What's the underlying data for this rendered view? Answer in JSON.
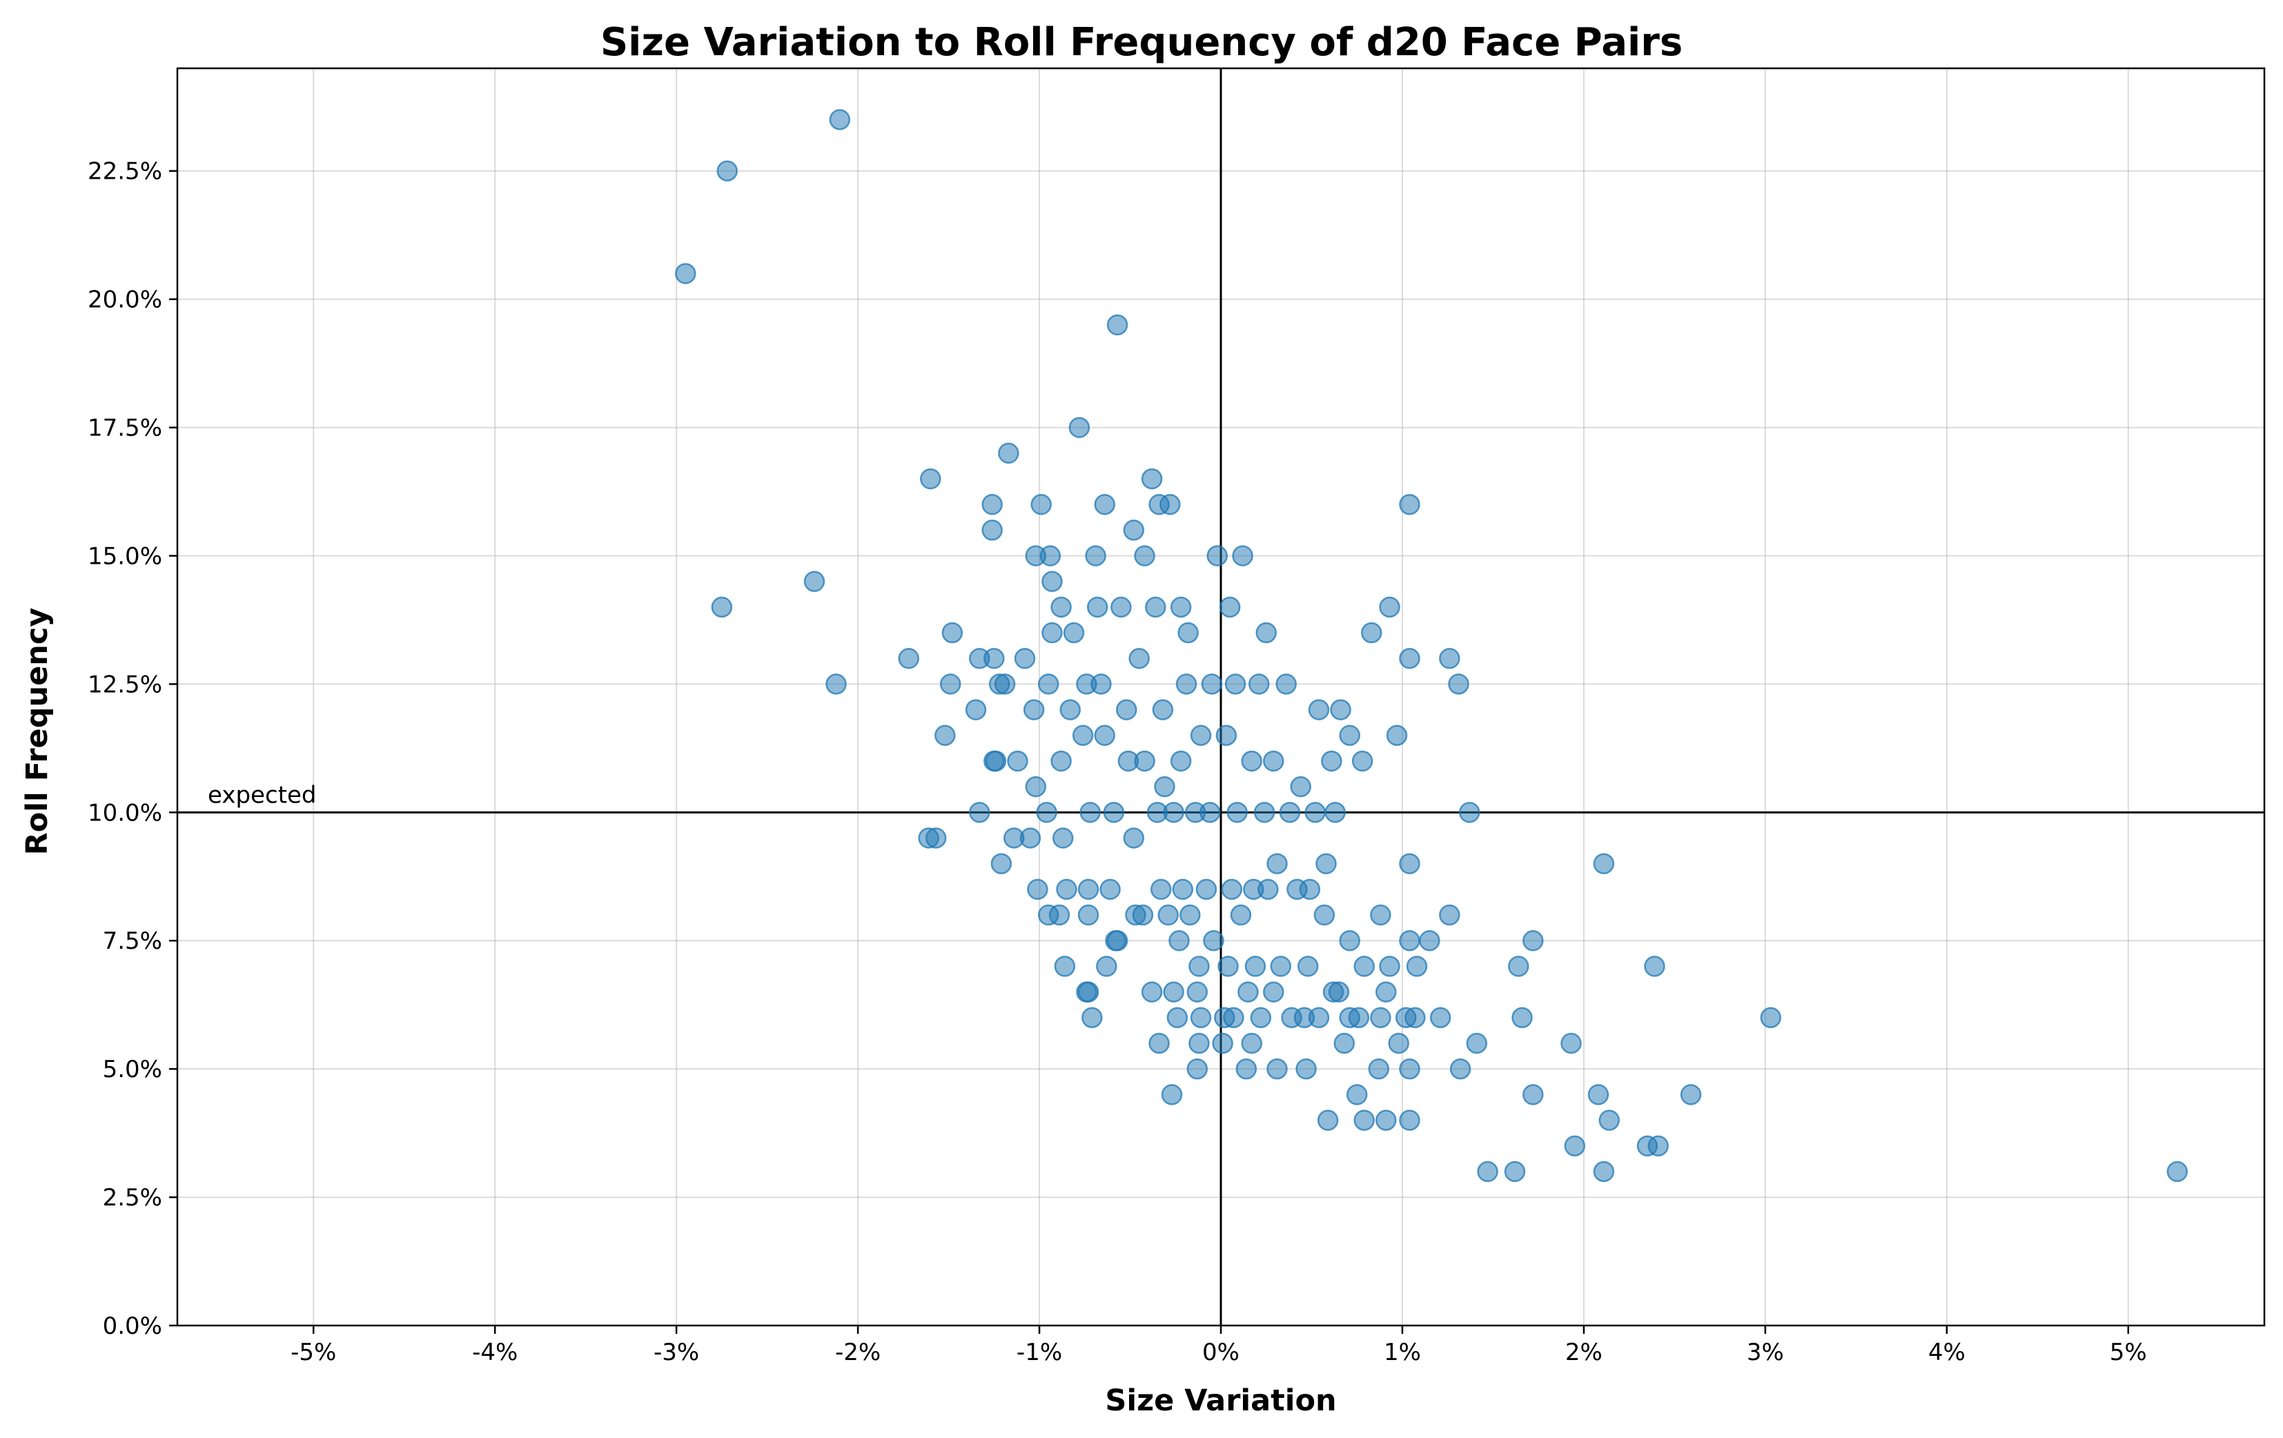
{
  "chart_data": {
    "type": "scatter",
    "title": "Size Variation to Roll Frequency of d20 Face Pairs",
    "xlabel": "Size Variation",
    "ylabel": "Roll Frequency",
    "xlim": [
      -0.0575,
      0.0575
    ],
    "ylim": [
      0,
      0.245
    ],
    "x_ticks": [
      -0.05,
      -0.04,
      -0.03,
      -0.02,
      -0.01,
      0,
      0.01,
      0.02,
      0.03,
      0.04,
      0.05
    ],
    "x_tick_labels": [
      "-5%",
      "-4%",
      "-3%",
      "-2%",
      "-1%",
      "0%",
      "1%",
      "2%",
      "3%",
      "4%",
      "5%"
    ],
    "y_ticks": [
      0,
      0.025,
      0.05,
      0.075,
      0.1,
      0.125,
      0.15,
      0.175,
      0.2,
      0.225
    ],
    "y_tick_labels": [
      "0.0%",
      "2.5%",
      "5.0%",
      "7.5%",
      "10.0%",
      "12.5%",
      "15.0%",
      "17.5%",
      "20.0%",
      "22.5%"
    ],
    "grid": true,
    "reference_lines": {
      "x": 0,
      "y": 0.1
    },
    "annotation": {
      "text": "expected",
      "x_at": "left",
      "y": 0.1
    },
    "color": "#1f77b4",
    "series": [
      {
        "x": [
          -0.021,
          -0.0272,
          -0.0295,
          -0.0057,
          -0.0078,
          -0.0117,
          -0.016,
          -0.0126,
          -0.0126,
          -0.0099,
          -0.0094,
          -0.0064,
          -0.0038,
          -0.0028,
          -0.0034,
          -0.0048,
          -0.0022,
          -0.0102,
          -0.0093,
          -0.0088,
          -0.0069,
          -0.0042,
          -0.0002,
          0.0012,
          0.0104,
          -0.0275,
          -0.0224,
          -0.0212,
          -0.0172,
          -0.0148,
          -0.0133,
          -0.0125,
          -0.0122,
          -0.0108,
          -0.0093,
          -0.0081,
          -0.0068,
          -0.0055,
          -0.0036,
          -0.0018,
          0.0005,
          0.0025,
          0.0083,
          0.0126,
          0.0104,
          0.0131,
          0.0093,
          -0.0152,
          -0.0149,
          -0.0135,
          -0.0124,
          -0.0119,
          -0.0103,
          -0.0095,
          -0.0083,
          -0.0074,
          -0.0066,
          -0.0052,
          -0.0045,
          -0.0032,
          -0.0019,
          -0.0005,
          0.0008,
          0.0021,
          0.0036,
          0.0054,
          0.0066,
          0.0097,
          -0.0157,
          -0.0125,
          -0.0112,
          -0.0102,
          -0.0088,
          -0.0076,
          -0.0064,
          -0.0051,
          -0.0042,
          -0.0031,
          -0.0022,
          -0.0011,
          0.0003,
          0.0017,
          0.0029,
          0.0044,
          0.0061,
          0.0071,
          0.0078,
          -0.0133,
          -0.0105,
          -0.0096,
          -0.0087,
          -0.0072,
          -0.0059,
          -0.0048,
          -0.0035,
          -0.0026,
          -0.0014,
          -0.0006,
          0.0009,
          0.0024,
          0.0038,
          0.0052,
          0.0063,
          0.0137,
          -0.0161,
          -0.0114,
          -0.0101,
          -0.0089,
          -0.0073,
          -0.0061,
          -0.0047,
          -0.0033,
          -0.0021,
          -0.0008,
          0.0006,
          0.0018,
          0.0031,
          0.0049,
          0.0058,
          0.0104,
          0.0211,
          -0.0121,
          -0.0095,
          -0.0085,
          -0.0073,
          -0.0058,
          -0.0043,
          -0.0029,
          -0.0017,
          -0.0004,
          0.0011,
          0.0026,
          0.0042,
          0.0057,
          0.0071,
          0.0088,
          0.0104,
          0.0115,
          0.0126,
          -0.0086,
          -0.0073,
          -0.0057,
          -0.0038,
          -0.0023,
          -0.0012,
          0.0004,
          0.0019,
          0.0033,
          0.0048,
          0.0065,
          0.0079,
          0.0093,
          0.0108,
          0.0172,
          -0.0063,
          -0.0024,
          -0.0011,
          0.0007,
          0.0022,
          0.0039,
          0.0054,
          0.0071,
          0.0088,
          0.0102,
          0.0121,
          0.0164,
          0.0239,
          -0.0071,
          -0.0026,
          -0.0013,
          0.0002,
          0.0015,
          0.0029,
          0.0046,
          0.0062,
          0.0076,
          0.0091,
          0.0107,
          0.0166,
          0.0303,
          -0.0074,
          -0.0034,
          -0.0012,
          0.0001,
          0.0017,
          0.0068,
          0.0098,
          0.0141,
          0.0193,
          -0.0027,
          -0.0013,
          0.0014,
          0.0031,
          0.0047,
          0.0075,
          0.0087,
          0.0104,
          0.0132,
          0.0172,
          0.0208,
          0.0259,
          0.0059,
          0.0079,
          0.0091,
          0.0104,
          0.0214,
          0.0195,
          0.0235,
          0.0241,
          0.0147,
          0.0162,
          0.0211,
          0.0527
        ],
        "y": [
          0.235,
          0.225,
          0.205,
          0.195,
          0.175,
          0.17,
          0.165,
          0.16,
          0.155,
          0.16,
          0.15,
          0.16,
          0.165,
          0.16,
          0.16,
          0.155,
          0.14,
          0.15,
          0.145,
          0.14,
          0.15,
          0.15,
          0.15,
          0.15,
          0.16,
          0.14,
          0.145,
          0.125,
          0.13,
          0.135,
          0.13,
          0.13,
          0.125,
          0.13,
          0.135,
          0.135,
          0.14,
          0.14,
          0.14,
          0.135,
          0.14,
          0.135,
          0.135,
          0.13,
          0.13,
          0.125,
          0.14,
          0.115,
          0.125,
          0.12,
          0.11,
          0.125,
          0.12,
          0.125,
          0.12,
          0.125,
          0.125,
          0.12,
          0.13,
          0.12,
          0.125,
          0.125,
          0.125,
          0.125,
          0.125,
          0.12,
          0.12,
          0.115,
          0.095,
          0.11,
          0.11,
          0.105,
          0.11,
          0.115,
          0.115,
          0.11,
          0.11,
          0.105,
          0.11,
          0.115,
          0.115,
          0.11,
          0.11,
          0.105,
          0.11,
          0.115,
          0.11,
          0.1,
          0.095,
          0.1,
          0.095,
          0.1,
          0.1,
          0.095,
          0.1,
          0.1,
          0.1,
          0.1,
          0.1,
          0.1,
          0.1,
          0.1,
          0.1,
          0.1,
          0.095,
          0.095,
          0.085,
          0.08,
          0.085,
          0.085,
          0.08,
          0.085,
          0.085,
          0.085,
          0.085,
          0.085,
          0.09,
          0.085,
          0.09,
          0.09,
          0.09,
          0.09,
          0.08,
          0.085,
          0.08,
          0.075,
          0.08,
          0.08,
          0.08,
          0.075,
          0.08,
          0.085,
          0.085,
          0.08,
          0.075,
          0.08,
          0.075,
          0.075,
          0.08,
          0.07,
          0.065,
          0.075,
          0.065,
          0.075,
          0.07,
          0.07,
          0.07,
          0.07,
          0.07,
          0.065,
          0.07,
          0.07,
          0.07,
          0.075,
          0.07,
          0.06,
          0.06,
          0.06,
          0.06,
          0.06,
          0.06,
          0.06,
          0.06,
          0.06,
          0.06,
          0.07,
          0.07,
          0.06,
          0.065,
          0.065,
          0.06,
          0.065,
          0.065,
          0.06,
          0.065,
          0.06,
          0.065,
          0.06,
          0.06,
          0.06,
          0.065,
          0.055,
          0.055,
          0.055,
          0.055,
          0.055,
          0.055,
          0.055,
          0.055,
          0.045,
          0.05,
          0.05,
          0.05,
          0.05,
          0.045,
          0.05,
          0.05,
          0.05,
          0.045,
          0.045,
          0.045,
          0.04,
          0.04,
          0.04,
          0.04,
          0.04,
          0.035,
          0.035,
          0.035,
          0.03,
          0.03,
          0.03,
          0.03
        ]
      }
    ]
  }
}
